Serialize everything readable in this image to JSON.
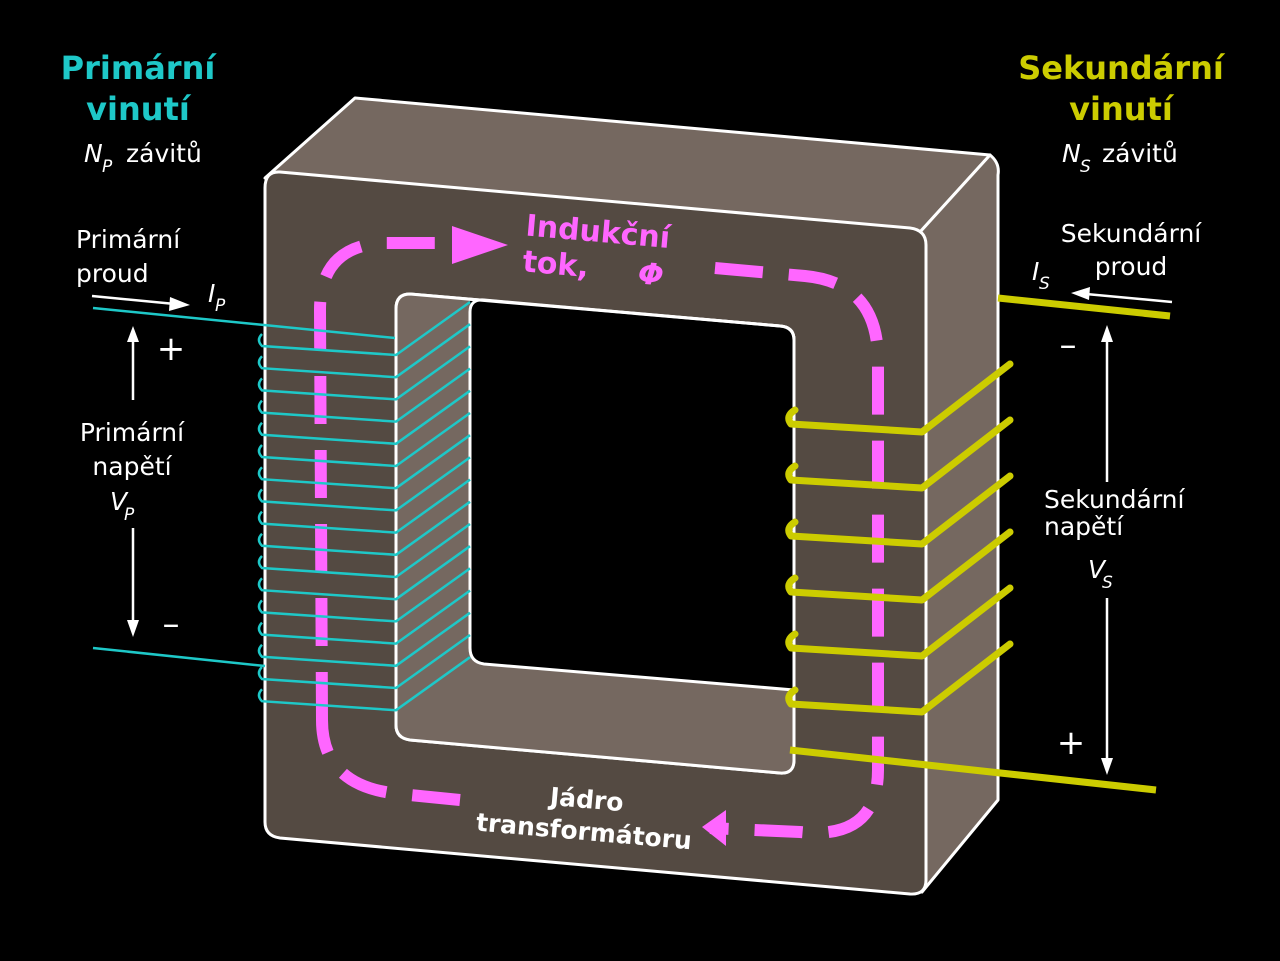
{
  "colors": {
    "background": "#000000",
    "core_front": "#544a42",
    "core_side": "#756860",
    "primary": "#1ec8c8",
    "secondary": "#cccc00",
    "flux": "#ff66ff",
    "text": "#ffffff"
  },
  "primary": {
    "title_line1": "Primární",
    "title_line2": "vinutí",
    "turns_symbol": "N",
    "turns_sub": "P",
    "turns_word": "závitů",
    "current_line1": "Primární",
    "current_line2": "proud",
    "current_symbol": "I",
    "current_sub": "P",
    "plus": "+",
    "minus": "–",
    "voltage_line1": "Primární",
    "voltage_line2": "napětí",
    "voltage_symbol": "V",
    "voltage_sub": "P"
  },
  "secondary": {
    "title_line1": "Sekundární",
    "title_line2": "vinutí",
    "turns_symbol": "N",
    "turns_sub": "S",
    "turns_word": "závitů",
    "current_line1": "Sekundární",
    "current_line2": "proud",
    "current_symbol": "I",
    "current_sub": "S",
    "minus": "–",
    "plus": "+",
    "voltage_line1": "Sekundární",
    "voltage_line2": "napětí",
    "voltage_symbol": "V",
    "voltage_sub": "S"
  },
  "flux": {
    "line1": "Indukční",
    "line2": "tok,",
    "symbol": "Φ"
  },
  "core": {
    "line1": "Jádro",
    "line2": "transformátoru"
  }
}
